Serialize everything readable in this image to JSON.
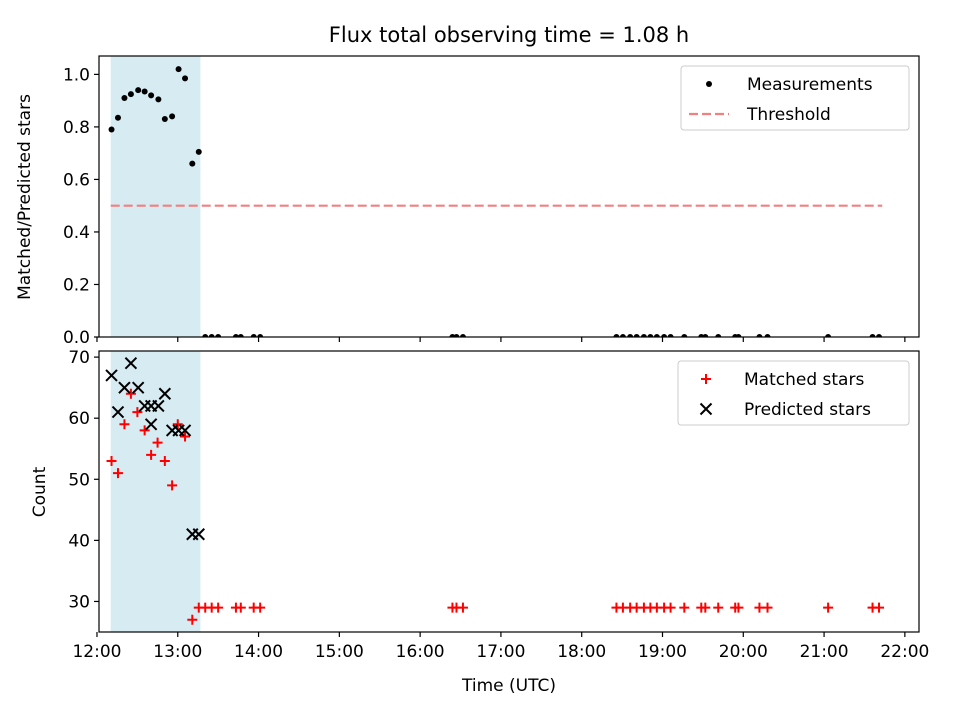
{
  "chart_data": [
    {
      "type": "scatter",
      "title": "Flux total observing time = 1.08 h",
      "xlabel": "",
      "ylabel": "Matched/Predicted stars",
      "xlim": [
        12.025,
        22.175
      ],
      "ylim": [
        0.0,
        1.07
      ],
      "yticks": [
        "0.0",
        "0.2",
        "0.4",
        "0.6",
        "0.8",
        "1.0"
      ],
      "shaded_span": [
        12.17,
        13.28
      ],
      "legend": {
        "position": "top-right",
        "entries": [
          "Measurements",
          "Threshold"
        ]
      },
      "threshold": {
        "name": "Threshold",
        "value": 0.5,
        "x": [
          12.17,
          21.72
        ],
        "color": "#f28080"
      },
      "series": [
        {
          "name": "Measurements",
          "marker": "dot",
          "color": "#000000",
          "points": [
            [
              12.18,
              0.79
            ],
            [
              12.26,
              0.835
            ],
            [
              12.34,
              0.91
            ],
            [
              12.42,
              0.925
            ],
            [
              12.51,
              0.94
            ],
            [
              12.59,
              0.935
            ],
            [
              12.67,
              0.92
            ],
            [
              12.76,
              0.905
            ],
            [
              12.84,
              0.83
            ],
            [
              12.93,
              0.84
            ],
            [
              13.01,
              1.02
            ],
            [
              13.09,
              0.985
            ],
            [
              13.18,
              0.66
            ],
            [
              13.26,
              0.705
            ],
            [
              13.34,
              0.0
            ],
            [
              13.42,
              0.0
            ],
            [
              13.5,
              0.0
            ],
            [
              13.72,
              0.0
            ],
            [
              13.78,
              0.0
            ],
            [
              13.94,
              0.0
            ],
            [
              14.02,
              0.0
            ],
            [
              16.4,
              0.0
            ],
            [
              16.45,
              0.0
            ],
            [
              16.53,
              0.0
            ],
            [
              18.43,
              0.0
            ],
            [
              18.51,
              0.0
            ],
            [
              18.6,
              0.0
            ],
            [
              18.68,
              0.0
            ],
            [
              18.77,
              0.0
            ],
            [
              18.85,
              0.0
            ],
            [
              18.93,
              0.0
            ],
            [
              19.02,
              0.0
            ],
            [
              19.1,
              0.0
            ],
            [
              19.27,
              0.0
            ],
            [
              19.48,
              0.0
            ],
            [
              19.53,
              0.0
            ],
            [
              19.69,
              0.0
            ],
            [
              19.9,
              0.0
            ],
            [
              19.94,
              0.0
            ],
            [
              20.2,
              0.0
            ],
            [
              20.3,
              0.0
            ],
            [
              21.05,
              0.0
            ],
            [
              21.6,
              0.0
            ],
            [
              21.68,
              0.0
            ]
          ]
        }
      ]
    },
    {
      "type": "scatter",
      "title": "",
      "xlabel": "Time (UTC)",
      "ylabel": "Count",
      "xlim": [
        12.025,
        22.175
      ],
      "ylim": [
        25.0,
        71.0
      ],
      "yticks": [
        "30",
        "40",
        "50",
        "60",
        "70"
      ],
      "xticks": [
        "12:00",
        "13:00",
        "14:00",
        "15:00",
        "16:00",
        "17:00",
        "18:00",
        "19:00",
        "20:00",
        "21:00",
        "22:00"
      ],
      "shaded_span": [
        12.17,
        13.28
      ],
      "legend": {
        "position": "top-right",
        "entries": [
          "Matched stars",
          "Predicted stars"
        ]
      },
      "series": [
        {
          "name": "Matched stars",
          "marker": "plus",
          "color": "#ff0000",
          "points": [
            [
              12.18,
              53
            ],
            [
              12.26,
              51
            ],
            [
              12.34,
              59
            ],
            [
              12.42,
              64
            ],
            [
              12.5,
              61
            ],
            [
              12.59,
              58
            ],
            [
              12.67,
              54
            ],
            [
              12.75,
              56
            ],
            [
              12.84,
              53
            ],
            [
              12.93,
              49
            ],
            [
              13.0,
              59
            ],
            [
              13.09,
              57
            ],
            [
              13.18,
              27
            ],
            [
              13.26,
              29
            ],
            [
              13.34,
              29
            ],
            [
              13.42,
              29
            ],
            [
              13.5,
              29
            ],
            [
              13.72,
              29
            ],
            [
              13.78,
              29
            ],
            [
              13.94,
              29
            ],
            [
              14.02,
              29
            ],
            [
              16.4,
              29
            ],
            [
              16.45,
              29
            ],
            [
              16.53,
              29
            ],
            [
              18.43,
              29
            ],
            [
              18.51,
              29
            ],
            [
              18.6,
              29
            ],
            [
              18.68,
              29
            ],
            [
              18.77,
              29
            ],
            [
              18.85,
              29
            ],
            [
              18.93,
              29
            ],
            [
              19.02,
              29
            ],
            [
              19.1,
              29
            ],
            [
              19.27,
              29
            ],
            [
              19.48,
              29
            ],
            [
              19.53,
              29
            ],
            [
              19.69,
              29
            ],
            [
              19.9,
              29
            ],
            [
              19.94,
              29
            ],
            [
              20.2,
              29
            ],
            [
              20.3,
              29
            ],
            [
              21.05,
              29
            ],
            [
              21.6,
              29
            ],
            [
              21.68,
              29
            ]
          ]
        },
        {
          "name": "Predicted stars",
          "marker": "x",
          "color": "#000000",
          "points": [
            [
              12.18,
              67
            ],
            [
              12.26,
              61
            ],
            [
              12.34,
              65
            ],
            [
              12.42,
              69
            ],
            [
              12.51,
              65
            ],
            [
              12.59,
              62
            ],
            [
              12.67,
              59
            ],
            [
              12.67,
              62
            ],
            [
              12.76,
              62
            ],
            [
              12.84,
              64
            ],
            [
              12.93,
              58
            ],
            [
              13.01,
              58
            ],
            [
              13.09,
              58
            ],
            [
              13.18,
              41
            ],
            [
              13.26,
              41
            ]
          ]
        }
      ]
    }
  ]
}
